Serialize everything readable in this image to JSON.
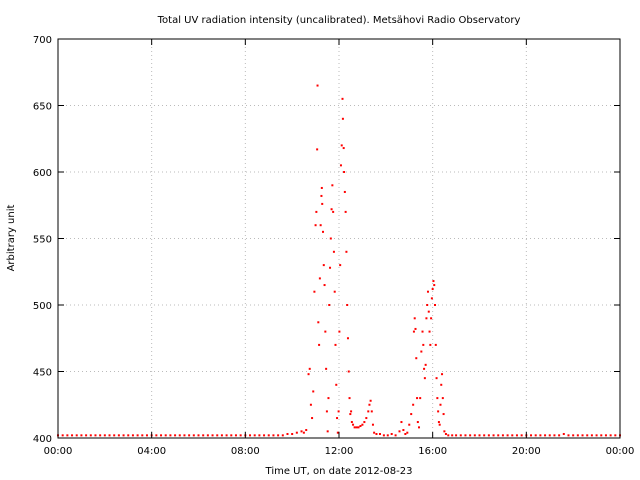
{
  "chart_data": {
    "type": "scatter",
    "title": "Total UV radiation intensity (uncalibrated). Metsähovi Radio Observatory",
    "xlabel": "Time UT, on date 2012-08-23",
    "ylabel": "Arbitrary unit",
    "xlim": [
      "00:00",
      "24:00"
    ],
    "ylim": [
      400,
      700
    ],
    "x_ticks": [
      "00:00",
      "04:00",
      "08:00",
      "12:00",
      "16:00",
      "20:00",
      "00:00"
    ],
    "y_ticks": [
      400,
      450,
      500,
      550,
      600,
      650,
      700
    ],
    "grid": true,
    "marker_color": "#ff0000",
    "series": [
      {
        "points": [
          [
            "00:00",
            402
          ],
          [
            "00:12",
            402
          ],
          [
            "00:24",
            402
          ],
          [
            "00:36",
            402
          ],
          [
            "00:48",
            402
          ],
          [
            "01:00",
            402
          ],
          [
            "01:12",
            402
          ],
          [
            "01:24",
            402
          ],
          [
            "01:36",
            402
          ],
          [
            "01:48",
            402
          ],
          [
            "02:00",
            402
          ],
          [
            "02:12",
            402
          ],
          [
            "02:24",
            402
          ],
          [
            "02:36",
            402
          ],
          [
            "02:48",
            402
          ],
          [
            "03:00",
            402
          ],
          [
            "03:12",
            402
          ],
          [
            "03:24",
            402
          ],
          [
            "03:36",
            402
          ],
          [
            "03:48",
            402
          ],
          [
            "04:00",
            402
          ],
          [
            "04:12",
            402
          ],
          [
            "04:24",
            402
          ],
          [
            "04:36",
            402
          ],
          [
            "04:48",
            402
          ],
          [
            "05:00",
            402
          ],
          [
            "05:12",
            402
          ],
          [
            "05:24",
            402
          ],
          [
            "05:36",
            402
          ],
          [
            "05:48",
            402
          ],
          [
            "06:00",
            402
          ],
          [
            "06:12",
            402
          ],
          [
            "06:24",
            402
          ],
          [
            "06:36",
            402
          ],
          [
            "06:48",
            402
          ],
          [
            "07:00",
            402
          ],
          [
            "07:12",
            402
          ],
          [
            "07:24",
            402
          ],
          [
            "07:36",
            402
          ],
          [
            "07:48",
            402
          ],
          [
            "08:00",
            402
          ],
          [
            "08:12",
            402
          ],
          [
            "08:24",
            402
          ],
          [
            "08:36",
            402
          ],
          [
            "08:48",
            402
          ],
          [
            "09:00",
            402
          ],
          [
            "09:12",
            402
          ],
          [
            "09:24",
            402
          ],
          [
            "09:36",
            402
          ],
          [
            "09:48",
            403
          ],
          [
            "10:00",
            403
          ],
          [
            "10:12",
            404
          ],
          [
            "10:24",
            405
          ],
          [
            "10:30",
            404
          ],
          [
            "10:36",
            406
          ],
          [
            "10:42",
            448
          ],
          [
            "10:45",
            452
          ],
          [
            "10:48",
            425
          ],
          [
            "10:51",
            415
          ],
          [
            "10:54",
            435
          ],
          [
            "10:57",
            510
          ],
          [
            "11:00",
            560
          ],
          [
            "11:02",
            570
          ],
          [
            "11:04",
            617
          ],
          [
            "11:05",
            665
          ],
          [
            "11:07",
            487
          ],
          [
            "11:09",
            470
          ],
          [
            "11:11",
            520
          ],
          [
            "11:13",
            560
          ],
          [
            "11:15",
            582
          ],
          [
            "11:16",
            588
          ],
          [
            "11:17",
            576
          ],
          [
            "11:19",
            555
          ],
          [
            "11:21",
            530
          ],
          [
            "11:23",
            515
          ],
          [
            "11:25",
            480
          ],
          [
            "11:27",
            452
          ],
          [
            "11:29",
            420
          ],
          [
            "11:31",
            405
          ],
          [
            "11:33",
            430
          ],
          [
            "11:35",
            500
          ],
          [
            "11:37",
            528
          ],
          [
            "11:39",
            550
          ],
          [
            "11:41",
            572
          ],
          [
            "11:43",
            590
          ],
          [
            "11:45",
            570
          ],
          [
            "11:47",
            540
          ],
          [
            "11:49",
            510
          ],
          [
            "11:51",
            470
          ],
          [
            "11:53",
            440
          ],
          [
            "11:55",
            415
          ],
          [
            "11:57",
            404
          ],
          [
            "11:59",
            420
          ],
          [
            "12:01",
            480
          ],
          [
            "12:03",
            530
          ],
          [
            "12:05",
            605
          ],
          [
            "12:07",
            620
          ],
          [
            "12:09",
            655
          ],
          [
            "12:10",
            640
          ],
          [
            "12:12",
            618
          ],
          [
            "12:13",
            600
          ],
          [
            "12:15",
            585
          ],
          [
            "12:17",
            570
          ],
          [
            "12:19",
            540
          ],
          [
            "12:21",
            500
          ],
          [
            "12:23",
            475
          ],
          [
            "12:25",
            450
          ],
          [
            "12:27",
            430
          ],
          [
            "12:29",
            418
          ],
          [
            "12:31",
            420
          ],
          [
            "12:33",
            412
          ],
          [
            "12:36",
            410
          ],
          [
            "12:40",
            408
          ],
          [
            "12:45",
            408
          ],
          [
            "12:50",
            408
          ],
          [
            "12:55",
            409
          ],
          [
            "13:00",
            410
          ],
          [
            "13:05",
            412
          ],
          [
            "13:10",
            415
          ],
          [
            "13:15",
            420
          ],
          [
            "13:18",
            425
          ],
          [
            "13:21",
            428
          ],
          [
            "13:24",
            420
          ],
          [
            "13:27",
            410
          ],
          [
            "13:30",
            404
          ],
          [
            "13:36",
            403
          ],
          [
            "13:45",
            403
          ],
          [
            "13:55",
            402
          ],
          [
            "14:05",
            402
          ],
          [
            "14:15",
            403
          ],
          [
            "14:25",
            402
          ],
          [
            "14:35",
            405
          ],
          [
            "14:40",
            412
          ],
          [
            "14:45",
            406
          ],
          [
            "14:50",
            403
          ],
          [
            "14:55",
            404
          ],
          [
            "15:00",
            410
          ],
          [
            "15:05",
            418
          ],
          [
            "15:10",
            425
          ],
          [
            "15:12",
            480
          ],
          [
            "15:14",
            490
          ],
          [
            "15:16",
            482
          ],
          [
            "15:18",
            460
          ],
          [
            "15:20",
            430
          ],
          [
            "15:22",
            412
          ],
          [
            "15:25",
            408
          ],
          [
            "15:28",
            430
          ],
          [
            "15:31",
            465
          ],
          [
            "15:34",
            480
          ],
          [
            "15:36",
            470
          ],
          [
            "15:38",
            452
          ],
          [
            "15:40",
            445
          ],
          [
            "15:42",
            455
          ],
          [
            "15:44",
            490
          ],
          [
            "15:46",
            500
          ],
          [
            "15:48",
            510
          ],
          [
            "15:50",
            495
          ],
          [
            "15:52",
            480
          ],
          [
            "15:54",
            470
          ],
          [
            "15:56",
            490
          ],
          [
            "15:58",
            505
          ],
          [
            "16:00",
            512
          ],
          [
            "16:02",
            518
          ],
          [
            "16:04",
            515
          ],
          [
            "16:06",
            500
          ],
          [
            "16:08",
            470
          ],
          [
            "16:10",
            445
          ],
          [
            "16:12",
            430
          ],
          [
            "16:14",
            420
          ],
          [
            "16:16",
            412
          ],
          [
            "16:18",
            410
          ],
          [
            "16:20",
            425
          ],
          [
            "16:22",
            440
          ],
          [
            "16:24",
            448
          ],
          [
            "16:26",
            430
          ],
          [
            "16:28",
            418
          ],
          [
            "16:30",
            405
          ],
          [
            "16:34",
            403
          ],
          [
            "16:40",
            402
          ],
          [
            "16:50",
            402
          ],
          [
            "17:00",
            402
          ],
          [
            "17:12",
            402
          ],
          [
            "17:24",
            402
          ],
          [
            "17:36",
            402
          ],
          [
            "17:48",
            402
          ],
          [
            "18:00",
            402
          ],
          [
            "18:12",
            402
          ],
          [
            "18:24",
            402
          ],
          [
            "18:36",
            402
          ],
          [
            "18:48",
            402
          ],
          [
            "19:00",
            402
          ],
          [
            "19:12",
            402
          ],
          [
            "19:24",
            402
          ],
          [
            "19:36",
            402
          ],
          [
            "19:48",
            402
          ],
          [
            "20:00",
            402
          ],
          [
            "20:12",
            402
          ],
          [
            "20:24",
            402
          ],
          [
            "20:36",
            402
          ],
          [
            "20:48",
            402
          ],
          [
            "21:00",
            402
          ],
          [
            "21:12",
            402
          ],
          [
            "21:24",
            402
          ],
          [
            "21:36",
            403
          ],
          [
            "21:48",
            402
          ],
          [
            "22:00",
            402
          ],
          [
            "22:12",
            402
          ],
          [
            "22:24",
            402
          ],
          [
            "22:36",
            402
          ],
          [
            "22:48",
            402
          ],
          [
            "23:00",
            402
          ],
          [
            "23:12",
            402
          ],
          [
            "23:24",
            402
          ],
          [
            "23:36",
            402
          ],
          [
            "23:48",
            402
          ],
          [
            "24:00",
            402
          ]
        ]
      }
    ]
  }
}
